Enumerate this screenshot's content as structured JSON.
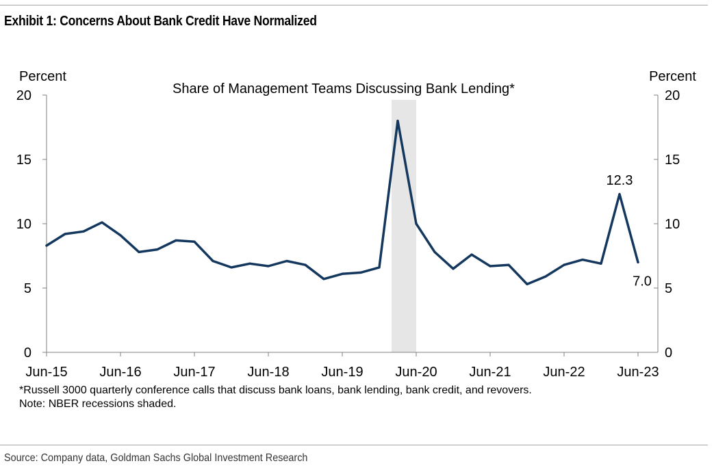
{
  "exhibit": {
    "title": "Exhibit 1: Concerns About Bank Credit Have Normalized"
  },
  "chart_data": {
    "type": "line",
    "title": "Share of Management Teams Discussing Bank Lending*",
    "ylabel_left": "Percent",
    "ylabel_right": "Percent",
    "ylim": [
      0,
      20
    ],
    "yticks": [
      0,
      5,
      10,
      15,
      20
    ],
    "xlim": [
      "2015-06",
      "2023-06"
    ],
    "xticks": [
      "Jun-15",
      "Jun-16",
      "Jun-17",
      "Jun-18",
      "Jun-19",
      "Jun-20",
      "Jun-21",
      "Jun-22",
      "Jun-23"
    ],
    "grid": false,
    "line_color": "#14375e",
    "series": [
      {
        "x": [
          "2015-06",
          "2015-09",
          "2015-12",
          "2016-03",
          "2016-06",
          "2016-09",
          "2016-12",
          "2017-03",
          "2017-06",
          "2017-09",
          "2017-12",
          "2018-03",
          "2018-06",
          "2018-09",
          "2018-12",
          "2019-03",
          "2019-06",
          "2019-09",
          "2019-12",
          "2020-03",
          "2020-06",
          "2020-09",
          "2020-12",
          "2021-03",
          "2021-06",
          "2021-09",
          "2021-12",
          "2022-03",
          "2022-06",
          "2022-09",
          "2022-12",
          "2023-03",
          "2023-06"
        ],
        "values": [
          8.3,
          9.2,
          9.4,
          10.1,
          9.1,
          7.8,
          8.0,
          8.7,
          8.6,
          7.1,
          6.6,
          6.9,
          6.7,
          7.1,
          6.8,
          5.7,
          6.1,
          6.2,
          6.6,
          18.0,
          10.0,
          7.8,
          6.5,
          7.6,
          6.7,
          6.8,
          5.3,
          5.9,
          6.8,
          7.2,
          6.9,
          12.3,
          7.0
        ]
      }
    ],
    "annotations": [
      {
        "x": "2023-03",
        "text": "12.3"
      },
      {
        "x": "2023-06",
        "text": "7.0"
      }
    ],
    "recession_shading": {
      "start": "2020-02",
      "end": "2020-06",
      "color": "#e6e6e6"
    }
  },
  "footnotes": [
    "*Russell 3000 quarterly conference calls that discuss bank loans, bank lending, bank credit, and revovers.",
    "Note: NBER recessions shaded."
  ],
  "source": "Source: Company data, Goldman Sachs Global Investment Research"
}
